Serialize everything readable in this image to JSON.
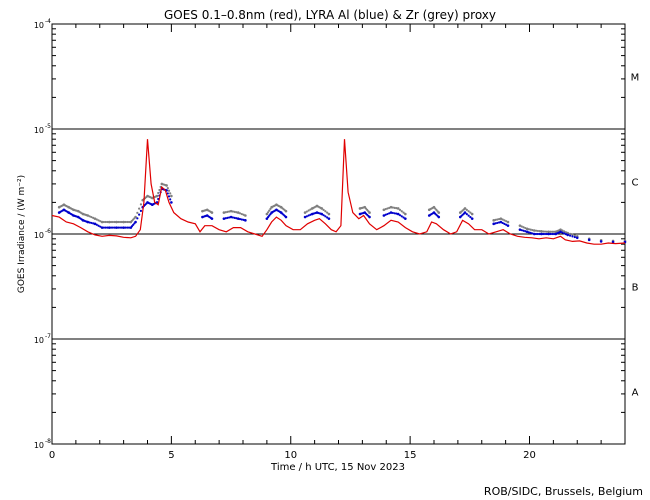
{
  "chart_data": {
    "type": "scatter",
    "title": "GOES 0.1–0.8nm (red), LYRA Al (blue) & Zr (grey) proxy",
    "xlabel": "Time / h UTC, 15 Nov 2023",
    "ylabel": "GOES Irradiance / (W m⁻²)",
    "xlim": [
      0,
      24
    ],
    "ylim_log10": [
      -8,
      -4
    ],
    "y_scale": "log",
    "x_ticks": [
      0,
      5,
      10,
      15,
      20
    ],
    "y_ticks": [
      {
        "exp": -4,
        "label": "10",
        "sup": "-4"
      },
      {
        "exp": -5,
        "label": "10",
        "sup": "-5"
      },
      {
        "exp": -6,
        "label": "10",
        "sup": "-6"
      },
      {
        "exp": -7,
        "label": "10",
        "sup": "-7"
      },
      {
        "exp": -8,
        "label": "10",
        "sup": "-8"
      }
    ],
    "flare_classes": [
      {
        "label": "M",
        "log_y": -4.5
      },
      {
        "label": "C",
        "log_y": -5.5
      },
      {
        "label": "B",
        "log_y": -6.5
      },
      {
        "label": "A",
        "log_y": -7.5
      }
    ],
    "reference_lines_log10": [
      -5,
      -6,
      -7
    ],
    "credit": "ROB/SIDC, Brussels, Belgium",
    "series": [
      {
        "name": "GOES 0.1–0.8nm",
        "color": "#e00000",
        "style": "line",
        "points": [
          [
            0.0,
            1.5e-06
          ],
          [
            0.3,
            1.45e-06
          ],
          [
            0.6,
            1.3e-06
          ],
          [
            0.9,
            1.25e-06
          ],
          [
            1.2,
            1.15e-06
          ],
          [
            1.5,
            1.05e-06
          ],
          [
            1.8,
            9.8e-07
          ],
          [
            2.1,
            9.5e-07
          ],
          [
            2.4,
            9.7e-07
          ],
          [
            2.7,
            9.6e-07
          ],
          [
            3.0,
            9.3e-07
          ],
          [
            3.3,
            9.2e-07
          ],
          [
            3.5,
            9.5e-07
          ],
          [
            3.7,
            1.1e-06
          ],
          [
            3.85,
            2e-06
          ],
          [
            4.0,
            8e-06
          ],
          [
            4.15,
            3e-06
          ],
          [
            4.3,
            2e-06
          ],
          [
            4.45,
            1.9e-06
          ],
          [
            4.6,
            2.8e-06
          ],
          [
            4.75,
            2.6e-06
          ],
          [
            4.9,
            2e-06
          ],
          [
            5.1,
            1.6e-06
          ],
          [
            5.4,
            1.4e-06
          ],
          [
            5.7,
            1.3e-06
          ],
          [
            6.0,
            1.25e-06
          ],
          [
            6.2,
            1.05e-06
          ],
          [
            6.4,
            1.2e-06
          ],
          [
            6.7,
            1.2e-06
          ],
          [
            7.0,
            1.1e-06
          ],
          [
            7.3,
            1.05e-06
          ],
          [
            7.6,
            1.15e-06
          ],
          [
            7.9,
            1.15e-06
          ],
          [
            8.2,
            1.05e-06
          ],
          [
            8.5,
            1e-06
          ],
          [
            8.8,
            9.5e-07
          ],
          [
            9.0,
            1.1e-06
          ],
          [
            9.2,
            1.3e-06
          ],
          [
            9.4,
            1.45e-06
          ],
          [
            9.6,
            1.35e-06
          ],
          [
            9.8,
            1.2e-06
          ],
          [
            10.1,
            1.1e-06
          ],
          [
            10.4,
            1.1e-06
          ],
          [
            10.7,
            1.25e-06
          ],
          [
            11.0,
            1.35e-06
          ],
          [
            11.2,
            1.4e-06
          ],
          [
            11.45,
            1.25e-06
          ],
          [
            11.7,
            1.1e-06
          ],
          [
            11.9,
            1.05e-06
          ],
          [
            12.1,
            1.2e-06
          ],
          [
            12.25,
            8e-06
          ],
          [
            12.4,
            2.5e-06
          ],
          [
            12.6,
            1.6e-06
          ],
          [
            12.85,
            1.4e-06
          ],
          [
            13.05,
            1.5e-06
          ],
          [
            13.3,
            1.25e-06
          ],
          [
            13.6,
            1.1e-06
          ],
          [
            13.9,
            1.2e-06
          ],
          [
            14.2,
            1.35e-06
          ],
          [
            14.5,
            1.3e-06
          ],
          [
            14.8,
            1.15e-06
          ],
          [
            15.1,
            1.05e-06
          ],
          [
            15.4,
            1e-06
          ],
          [
            15.7,
            1.05e-06
          ],
          [
            15.9,
            1.3e-06
          ],
          [
            16.1,
            1.25e-06
          ],
          [
            16.4,
            1.1e-06
          ],
          [
            16.7,
            1e-06
          ],
          [
            16.95,
            1.05e-06
          ],
          [
            17.2,
            1.35e-06
          ],
          [
            17.45,
            1.25e-06
          ],
          [
            17.7,
            1.1e-06
          ],
          [
            18.0,
            1.1e-06
          ],
          [
            18.3,
            1e-06
          ],
          [
            18.6,
            1.05e-06
          ],
          [
            18.9,
            1.1e-06
          ],
          [
            19.2,
            1e-06
          ],
          [
            19.5,
            9.5e-07
          ],
          [
            19.8,
            9.3e-07
          ],
          [
            20.1,
            9.2e-07
          ],
          [
            20.4,
            9e-07
          ],
          [
            20.7,
            9.2e-07
          ],
          [
            21.0,
            9e-07
          ],
          [
            21.3,
            9.5e-07
          ],
          [
            21.5,
            8.8e-07
          ],
          [
            21.8,
            8.5e-07
          ],
          [
            22.1,
            8.6e-07
          ],
          [
            22.4,
            8.2e-07
          ],
          [
            22.7,
            8e-07
          ],
          [
            23.0,
            8e-07
          ],
          [
            23.3,
            8.2e-07
          ],
          [
            23.6,
            8.1e-07
          ],
          [
            24.0,
            8.2e-07
          ]
        ]
      },
      {
        "name": "LYRA Al",
        "color": "#0000cc",
        "style": "dots",
        "points": [
          [
            0.3,
            1.6e-06
          ],
          [
            0.5,
            1.7e-06
          ],
          [
            0.7,
            1.6e-06
          ],
          [
            0.9,
            1.5e-06
          ],
          [
            1.1,
            1.45e-06
          ],
          [
            1.3,
            1.35e-06
          ],
          [
            1.5,
            1.3e-06
          ],
          [
            1.8,
            1.25e-06
          ],
          [
            2.1,
            1.15e-06
          ],
          [
            2.4,
            1.15e-06
          ],
          [
            2.7,
            1.15e-06
          ],
          [
            3.0,
            1.15e-06
          ],
          [
            3.3,
            1.15e-06
          ],
          [
            3.5,
            1.3e-06
          ],
          [
            3.8,
            1.8e-06
          ],
          [
            4.0,
            2e-06
          ],
          [
            4.2,
            1.9e-06
          ],
          [
            4.4,
            2e-06
          ],
          [
            4.6,
            2.7e-06
          ],
          [
            4.8,
            2.6e-06
          ],
          [
            5.0,
            2e-06
          ],
          [
            6.3,
            1.45e-06
          ],
          [
            6.5,
            1.5e-06
          ],
          [
            6.7,
            1.4e-06
          ],
          [
            7.2,
            1.4e-06
          ],
          [
            7.5,
            1.45e-06
          ],
          [
            7.8,
            1.4e-06
          ],
          [
            8.1,
            1.35e-06
          ],
          [
            9.0,
            1.4e-06
          ],
          [
            9.2,
            1.6e-06
          ],
          [
            9.4,
            1.7e-06
          ],
          [
            9.6,
            1.6e-06
          ],
          [
            9.8,
            1.45e-06
          ],
          [
            10.6,
            1.45e-06
          ],
          [
            10.9,
            1.55e-06
          ],
          [
            11.1,
            1.6e-06
          ],
          [
            11.3,
            1.55e-06
          ],
          [
            11.6,
            1.4e-06
          ],
          [
            12.9,
            1.55e-06
          ],
          [
            13.1,
            1.6e-06
          ],
          [
            13.3,
            1.45e-06
          ],
          [
            13.9,
            1.5e-06
          ],
          [
            14.2,
            1.6e-06
          ],
          [
            14.5,
            1.55e-06
          ],
          [
            14.8,
            1.4e-06
          ],
          [
            15.8,
            1.5e-06
          ],
          [
            16.0,
            1.6e-06
          ],
          [
            16.2,
            1.45e-06
          ],
          [
            17.1,
            1.45e-06
          ],
          [
            17.3,
            1.6e-06
          ],
          [
            17.6,
            1.4e-06
          ],
          [
            18.5,
            1.25e-06
          ],
          [
            18.8,
            1.3e-06
          ],
          [
            19.1,
            1.2e-06
          ],
          [
            19.6,
            1.1e-06
          ],
          [
            19.9,
            1.05e-06
          ],
          [
            20.2,
            1e-06
          ],
          [
            20.5,
            1e-06
          ],
          [
            20.8,
            1e-06
          ],
          [
            21.1,
            1e-06
          ],
          [
            21.3,
            1.05e-06
          ],
          [
            21.6,
            9.8e-07
          ],
          [
            22.0,
            9.2e-07
          ],
          [
            22.5,
            8.8e-07
          ],
          [
            23.0,
            8.5e-07
          ],
          [
            23.5,
            8.4e-07
          ],
          [
            24.0,
            8.4e-07
          ]
        ]
      },
      {
        "name": "Zr",
        "color": "#808080",
        "style": "dots",
        "points": [
          [
            0.3,
            1.8e-06
          ],
          [
            0.5,
            1.9e-06
          ],
          [
            0.7,
            1.8e-06
          ],
          [
            0.9,
            1.7e-06
          ],
          [
            1.1,
            1.65e-06
          ],
          [
            1.3,
            1.55e-06
          ],
          [
            1.5,
            1.5e-06
          ],
          [
            1.8,
            1.4e-06
          ],
          [
            2.1,
            1.3e-06
          ],
          [
            2.4,
            1.3e-06
          ],
          [
            2.7,
            1.3e-06
          ],
          [
            3.0,
            1.3e-06
          ],
          [
            3.3,
            1.3e-06
          ],
          [
            3.5,
            1.45e-06
          ],
          [
            3.8,
            2.1e-06
          ],
          [
            4.0,
            2.3e-06
          ],
          [
            4.2,
            2.2e-06
          ],
          [
            4.4,
            2.3e-06
          ],
          [
            4.6,
            3e-06
          ],
          [
            4.8,
            2.9e-06
          ],
          [
            5.0,
            2.3e-06
          ],
          [
            6.3,
            1.65e-06
          ],
          [
            6.5,
            1.7e-06
          ],
          [
            6.7,
            1.6e-06
          ],
          [
            7.2,
            1.6e-06
          ],
          [
            7.5,
            1.65e-06
          ],
          [
            7.8,
            1.6e-06
          ],
          [
            8.1,
            1.5e-06
          ],
          [
            9.0,
            1.55e-06
          ],
          [
            9.2,
            1.8e-06
          ],
          [
            9.4,
            1.9e-06
          ],
          [
            9.6,
            1.8e-06
          ],
          [
            9.8,
            1.65e-06
          ],
          [
            10.6,
            1.6e-06
          ],
          [
            10.9,
            1.75e-06
          ],
          [
            11.1,
            1.85e-06
          ],
          [
            11.3,
            1.75e-06
          ],
          [
            11.6,
            1.55e-06
          ],
          [
            12.9,
            1.75e-06
          ],
          [
            13.1,
            1.8e-06
          ],
          [
            13.3,
            1.6e-06
          ],
          [
            13.9,
            1.7e-06
          ],
          [
            14.2,
            1.8e-06
          ],
          [
            14.5,
            1.75e-06
          ],
          [
            14.8,
            1.55e-06
          ],
          [
            15.8,
            1.7e-06
          ],
          [
            16.0,
            1.8e-06
          ],
          [
            16.2,
            1.6e-06
          ],
          [
            17.1,
            1.6e-06
          ],
          [
            17.3,
            1.75e-06
          ],
          [
            17.6,
            1.55e-06
          ],
          [
            18.5,
            1.35e-06
          ],
          [
            18.8,
            1.4e-06
          ],
          [
            19.1,
            1.3e-06
          ],
          [
            19.6,
            1.2e-06
          ],
          [
            19.9,
            1.12e-06
          ],
          [
            20.2,
            1.08e-06
          ],
          [
            20.5,
            1.06e-06
          ],
          [
            20.8,
            1.05e-06
          ],
          [
            21.1,
            1.05e-06
          ],
          [
            21.3,
            1.1e-06
          ],
          [
            21.6,
            1.02e-06
          ],
          [
            22.0,
            9.5e-07
          ],
          [
            22.5,
            9e-07
          ],
          [
            23.0,
            8.7e-07
          ],
          [
            23.5,
            8.6e-07
          ],
          [
            24.0,
            8.6e-07
          ]
        ]
      }
    ]
  }
}
